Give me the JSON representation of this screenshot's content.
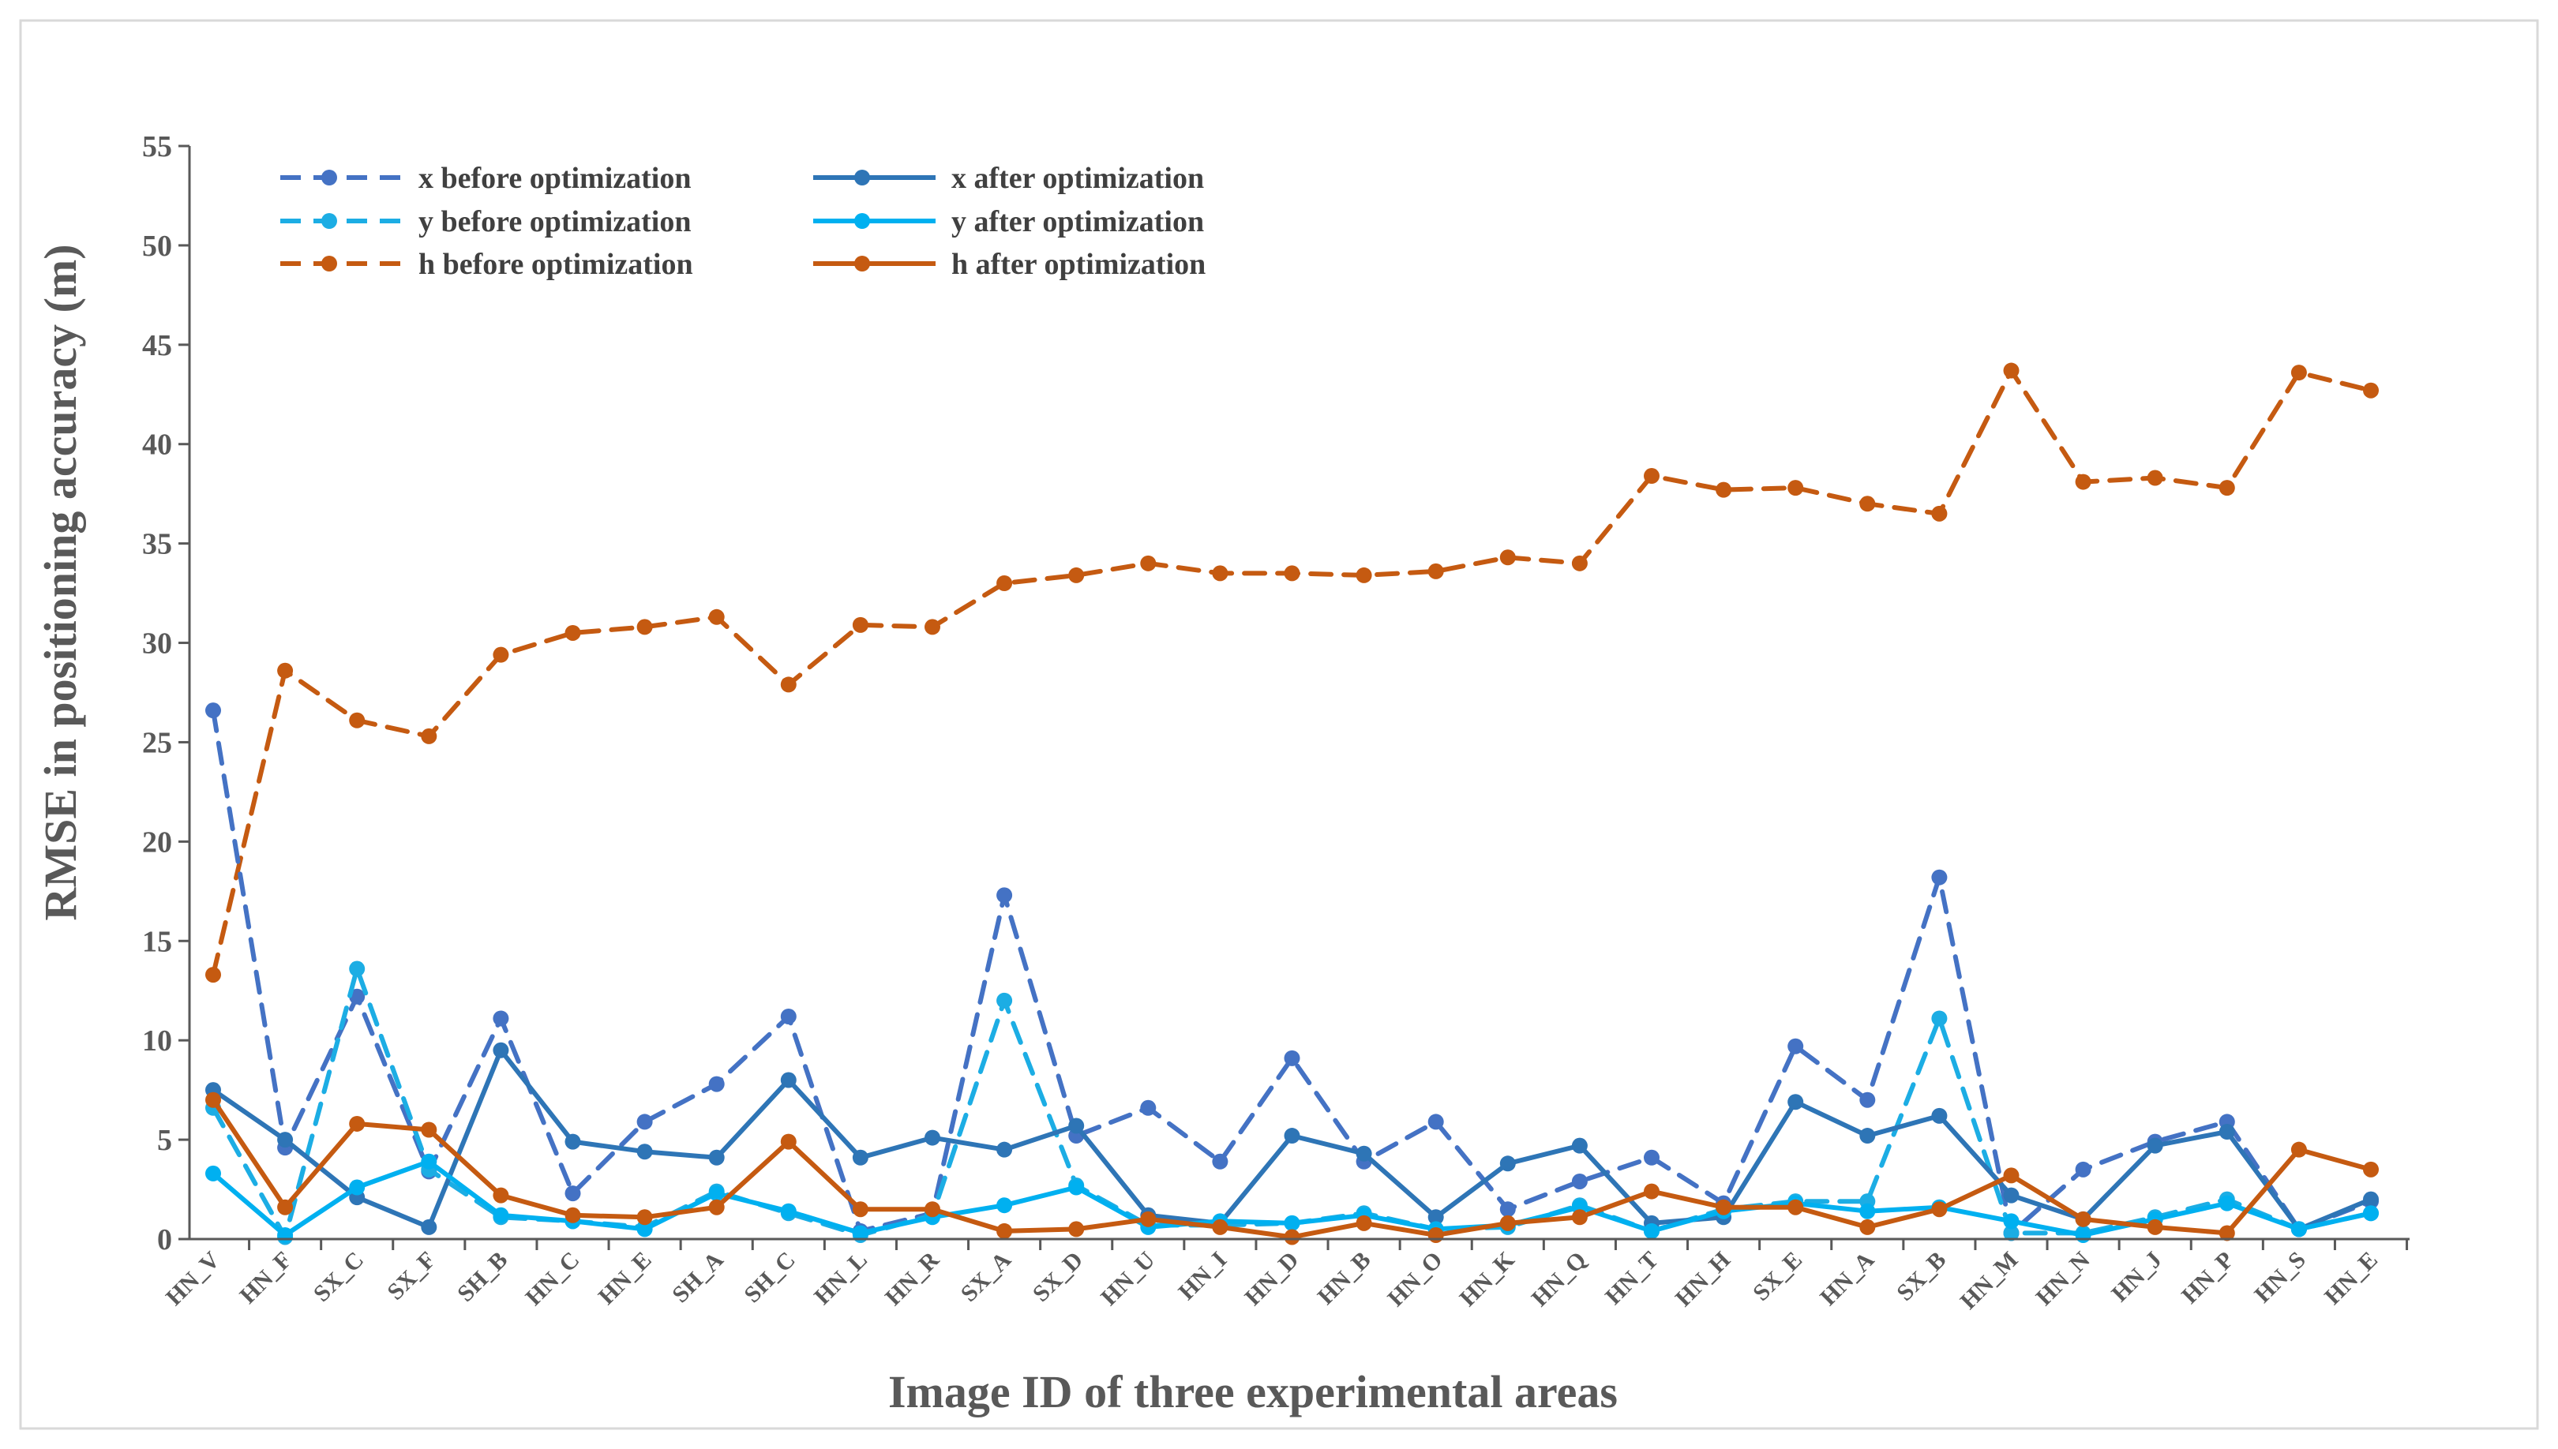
{
  "chart_data": {
    "type": "line",
    "title": "",
    "xlabel": "Image ID of three experimental areas",
    "ylabel": "RMSE in positioning accuracy (m)",
    "ylim": [
      0,
      55
    ],
    "yticks": [
      0,
      5,
      10,
      15,
      20,
      25,
      30,
      35,
      40,
      45,
      50,
      55
    ],
    "grid": false,
    "legend_position": "top-left",
    "categories": [
      "HN_V",
      "HN_F",
      "SX_C",
      "SX_F",
      "SH_B",
      "HN_C",
      "HN_E",
      "SH_A",
      "SH_C",
      "HN_L",
      "HN_R",
      "SX_A",
      "SX_D",
      "HN_U",
      "HN_I",
      "HN_D",
      "HN_B",
      "HN_O",
      "HN_K",
      "HN_Q",
      "HN_T",
      "HN_H",
      "SX_E",
      "HN_A",
      "SX_B",
      "HN_M",
      "HN_N",
      "HN_J",
      "HN_P",
      "HN_S",
      "HN_E"
    ],
    "series": [
      {
        "name": "x before optimization",
        "color": "#4472C4",
        "dash": "dashed",
        "values": [
          26.6,
          4.6,
          12.2,
          3.4,
          11.1,
          2.3,
          5.9,
          7.8,
          11.2,
          0.4,
          1.3,
          17.3,
          5.2,
          6.6,
          3.9,
          9.1,
          3.9,
          5.9,
          1.5,
          2.9,
          4.1,
          1.8,
          9.7,
          7.0,
          18.2,
          0.3,
          3.5,
          4.9,
          5.9,
          0.5,
          1.9
        ]
      },
      {
        "name": "x after optimization",
        "color": "#2E75B6",
        "dash": "solid",
        "values": [
          7.5,
          5.0,
          2.1,
          0.6,
          9.5,
          4.9,
          4.4,
          4.1,
          8.0,
          4.1,
          5.1,
          4.5,
          5.7,
          1.2,
          0.8,
          5.2,
          4.3,
          1.1,
          3.8,
          4.7,
          0.8,
          1.1,
          6.9,
          5.2,
          6.2,
          2.2,
          1.0,
          4.7,
          5.4,
          0.5,
          2.0
        ]
      },
      {
        "name": "y before optimization",
        "color": "#1CADE4",
        "dash": "dashed",
        "values": [
          6.6,
          0.1,
          13.6,
          3.5,
          1.1,
          0.9,
          0.6,
          2.4,
          1.3,
          0.2,
          1.2,
          12.0,
          2.7,
          0.7,
          0.7,
          0.8,
          1.3,
          0.5,
          0.6,
          1.7,
          0.4,
          1.5,
          1.9,
          1.9,
          11.1,
          0.3,
          0.3,
          1.1,
          2.0,
          0.5,
          1.3
        ]
      },
      {
        "name": "y after optimization",
        "color": "#00B0F0",
        "dash": "solid",
        "values": [
          3.3,
          0.2,
          2.6,
          3.9,
          1.2,
          0.9,
          0.5,
          2.3,
          1.4,
          0.3,
          1.1,
          1.7,
          2.6,
          0.6,
          0.9,
          0.8,
          1.2,
          0.5,
          0.7,
          1.6,
          0.4,
          1.4,
          1.8,
          1.4,
          1.6,
          0.9,
          0.2,
          1.0,
          1.8,
          0.5,
          1.3
        ]
      },
      {
        "name": "h before optimization",
        "color": "#C55A11",
        "dash": "dashed",
        "values": [
          13.3,
          28.6,
          26.1,
          25.3,
          29.4,
          30.5,
          30.8,
          31.3,
          27.9,
          30.9,
          30.8,
          33.0,
          33.4,
          34.0,
          33.5,
          33.5,
          33.4,
          33.6,
          34.3,
          34.0,
          38.4,
          37.7,
          37.8,
          37.0,
          36.5,
          43.7,
          38.1,
          38.3,
          37.8,
          43.6,
          42.7
        ]
      },
      {
        "name": "h after optimization",
        "color": "#C55A11",
        "dash": "solid",
        "values": [
          7.0,
          1.6,
          5.8,
          5.5,
          2.2,
          1.2,
          1.1,
          1.6,
          4.9,
          1.5,
          1.5,
          0.4,
          0.5,
          1.0,
          0.6,
          0.1,
          0.8,
          0.2,
          0.8,
          1.1,
          2.4,
          1.6,
          1.6,
          0.6,
          1.5,
          3.2,
          1.0,
          0.6,
          0.3,
          4.5,
          3.5
        ]
      }
    ]
  }
}
